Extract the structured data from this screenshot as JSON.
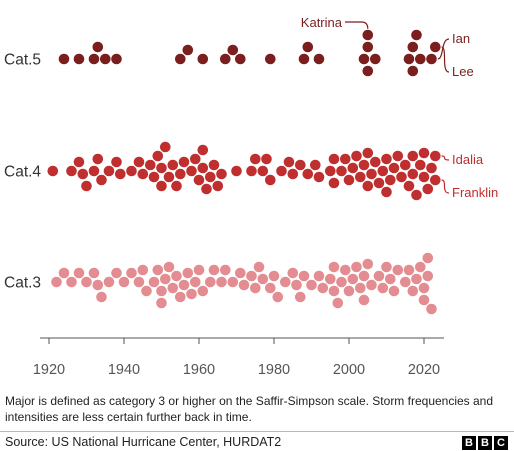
{
  "chart_data": {
    "type": "scatter",
    "title": "",
    "xlabel": "",
    "ylabel": "",
    "xlim": [
      1918,
      2025
    ],
    "x_ticks": [
      "1920",
      "1940",
      "1960",
      "1980",
      "2000",
      "2020"
    ],
    "colors": {
      "Cat.5": "#7a1e1e",
      "Cat.4": "#bf2f2f",
      "Cat.3": "#e38d92"
    },
    "categories": [
      "Cat.5",
      "Cat.4",
      "Cat.3"
    ],
    "series": [
      {
        "name": "Cat.5",
        "values": [
          1924,
          1928,
          1932,
          1933,
          1935,
          1938,
          1955,
          1957,
          1961,
          1967,
          1969,
          1971,
          1979,
          1988,
          1989,
          1992,
          2004,
          2005,
          2005,
          2005,
          2007,
          2016,
          2017,
          2017,
          2018,
          2019,
          2022,
          2023
        ]
      },
      {
        "name": "Cat.4",
        "values": [
          1921,
          1926,
          1928,
          1929,
          1930,
          1932,
          1933,
          1934,
          1936,
          1938,
          1939,
          1942,
          1944,
          1945,
          1947,
          1948,
          1949,
          1950,
          1950,
          1951,
          1952,
          1953,
          1954,
          1955,
          1956,
          1958,
          1959,
          1960,
          1961,
          1961,
          1962,
          1963,
          1964,
          1965,
          1966,
          1970,
          1974,
          1975,
          1977,
          1978,
          1979,
          1982,
          1984,
          1985,
          1987,
          1989,
          1991,
          1992,
          1995,
          1996,
          1996,
          1998,
          1999,
          2000,
          2001,
          2002,
          2003,
          2004,
          2005,
          2005,
          2006,
          2007,
          2008,
          2009,
          2010,
          2010,
          2011,
          2012,
          2013,
          2014,
          2015,
          2016,
          2017,
          2017,
          2018,
          2019,
          2020,
          2020,
          2021,
          2022,
          2023,
          2023
        ]
      },
      {
        "name": "Cat.3",
        "values": [
          1922,
          1924,
          1926,
          1928,
          1930,
          1932,
          1933,
          1934,
          1936,
          1938,
          1940,
          1942,
          1944,
          1945,
          1946,
          1948,
          1949,
          1950,
          1950,
          1951,
          1952,
          1953,
          1954,
          1955,
          1956,
          1957,
          1958,
          1959,
          1960,
          1961,
          1963,
          1964,
          1966,
          1967,
          1969,
          1971,
          1972,
          1974,
          1975,
          1976,
          1977,
          1979,
          1980,
          1981,
          1983,
          1985,
          1986,
          1987,
          1988,
          1990,
          1992,
          1993,
          1995,
          1996,
          1996,
          1997,
          1998,
          1999,
          2000,
          2001,
          2002,
          2003,
          2004,
          2004,
          2005,
          2006,
          2008,
          2009,
          2010,
          2011,
          2012,
          2013,
          2015,
          2016,
          2017,
          2018,
          2019,
          2020,
          2020,
          2021,
          2021,
          2022
        ]
      }
    ],
    "annotations": [
      {
        "text": "Katrina",
        "series": "Cat.5",
        "x": 2005
      },
      {
        "text": "Ian",
        "series": "Cat.5",
        "x": 2022
      },
      {
        "text": "Lee",
        "series": "Cat.5",
        "x": 2023
      },
      {
        "text": "Idalia",
        "series": "Cat.4",
        "x": 2023
      },
      {
        "text": "Franklin",
        "series": "Cat.4",
        "x": 2023
      }
    ]
  },
  "footnote": "Major is defined as category 3 or higher on the Saffir-Simpson scale. Storm frequencies and intensities are less certain further back in time.",
  "source": "Source: US National Hurricane Center, HURDAT2",
  "logo": [
    "B",
    "B",
    "C"
  ]
}
